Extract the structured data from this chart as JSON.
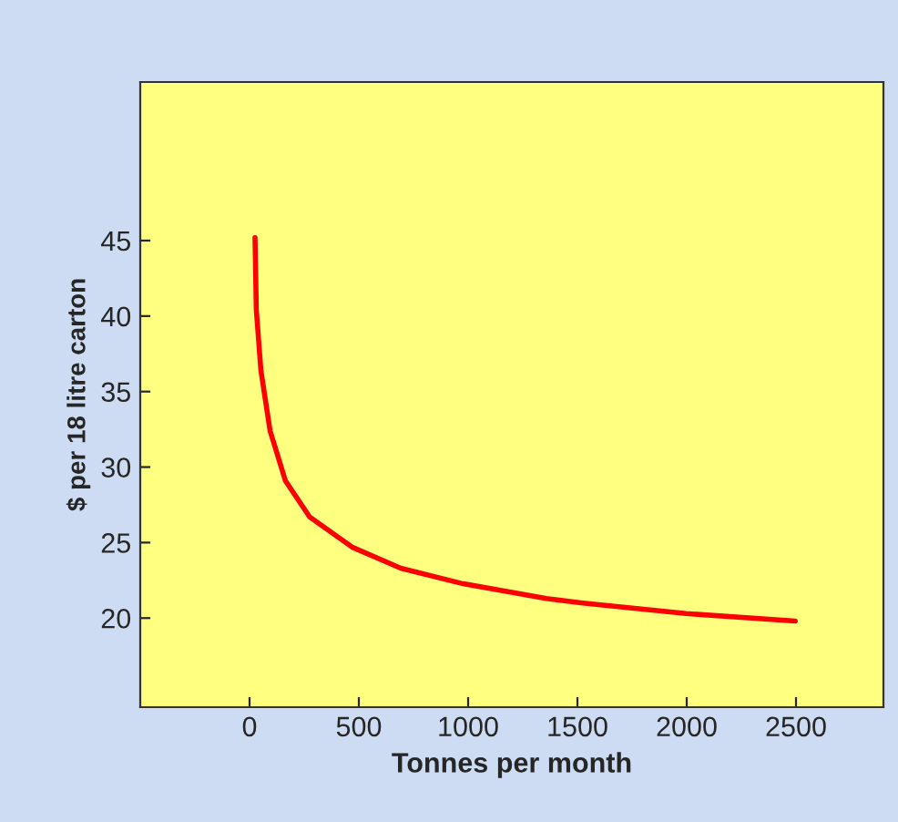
{
  "chart_data": {
    "type": "line",
    "xlabel": "Tonnes per month",
    "ylabel": "$ per 18 litre carton",
    "x": [
      25,
      31,
      52,
      94,
      164,
      275,
      469,
      692,
      969,
      1358,
      1525,
      1997,
      2497
    ],
    "series": [
      {
        "color": "#ff0000",
        "values": [
          45.2,
          40.4,
          36.4,
          32.4,
          29.1,
          26.7,
          24.7,
          23.3,
          22.3,
          21.3,
          21.0,
          20.3,
          19.8
        ]
      }
    ],
    "xlim": [
      -500,
      2900
    ],
    "ylim": [
      14.1,
      55.5
    ],
    "xticks": [
      0,
      500,
      1000,
      1500,
      2000,
      2500
    ],
    "yticks": [
      20,
      25,
      30,
      35,
      40,
      45
    ],
    "grid": false,
    "legend": false,
    "marker": "none",
    "line_style": "solid"
  }
}
